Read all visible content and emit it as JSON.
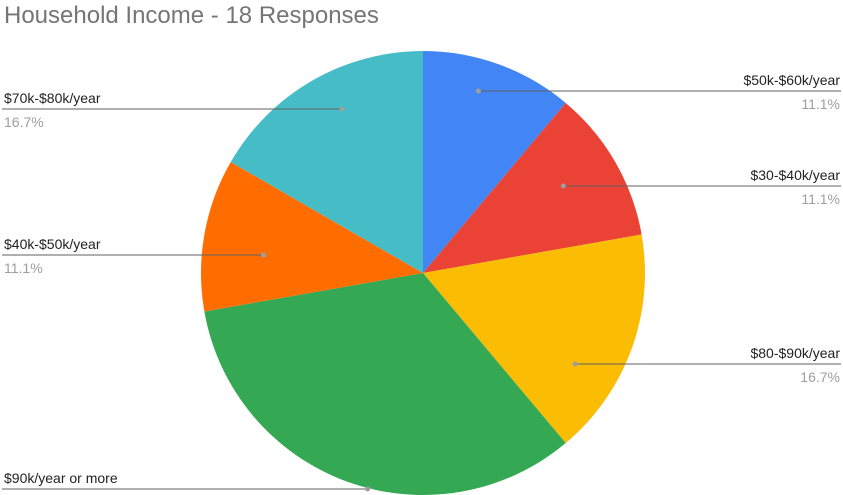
{
  "chart_data": {
    "type": "pie",
    "title": "Household Income - 18 Responses",
    "legend": "none",
    "slices": [
      {
        "label": "$50k-$60k/year",
        "value": 2,
        "percent": "11.1%",
        "color": "#4285f4"
      },
      {
        "label": "$30-$40k/year",
        "value": 2,
        "percent": "11.1%",
        "color": "#ea4335"
      },
      {
        "label": "$80-$90k/year",
        "value": 3,
        "percent": "16.7%",
        "color": "#fbbc04"
      },
      {
        "label": "$90k/year or more",
        "value": 6,
        "percent": "33.3%",
        "color": "#34a853"
      },
      {
        "label": "$40k-$50k/year",
        "value": 2,
        "percent": "11.1%",
        "color": "#ff6d01"
      },
      {
        "label": "$70k-$80k/year",
        "value": 3,
        "percent": "16.7%",
        "color": "#46bdc6"
      }
    ]
  }
}
